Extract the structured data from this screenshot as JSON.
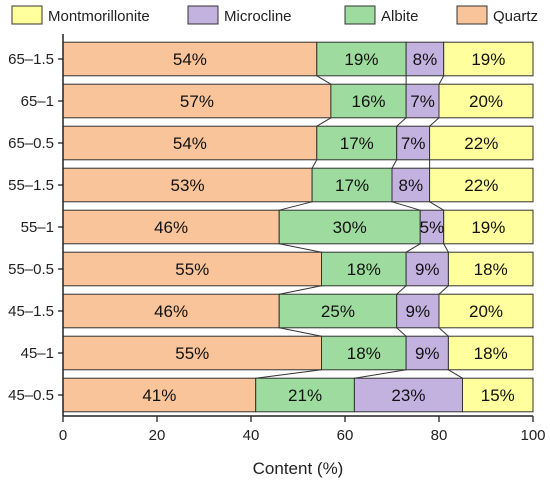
{
  "chart_data": {
    "type": "bar",
    "orientation": "horizontal",
    "stacked": true,
    "categories": [
      "65–1.5",
      "65–1",
      "65–0.5",
      "55–1.5",
      "55–1",
      "55–0.5",
      "45–1.5",
      "45–1",
      "45–0.5"
    ],
    "series": [
      {
        "name": "Quartz",
        "color": "#f9c49a",
        "values": [
          54,
          57,
          54,
          53,
          46,
          55,
          46,
          55,
          41
        ]
      },
      {
        "name": "Albite",
        "color": "#9edb9e",
        "values": [
          19,
          16,
          17,
          17,
          30,
          18,
          25,
          18,
          21
        ]
      },
      {
        "name": "Microcline",
        "color": "#c3b2e0",
        "values": [
          8,
          7,
          7,
          8,
          5,
          9,
          9,
          9,
          23
        ]
      },
      {
        "name": "Montmorillonite",
        "color": "#ffff9e",
        "values": [
          19,
          20,
          22,
          22,
          19,
          18,
          20,
          18,
          15
        ]
      }
    ],
    "legend_order": [
      "Montmorillonite",
      "Microcline",
      "Albite",
      "Quartz"
    ],
    "legend_position": "top",
    "xlabel": "Content (%)",
    "ylabel": "",
    "title": "",
    "xlim": [
      0,
      100
    ],
    "xticks": [
      0,
      20,
      40,
      60,
      80,
      100
    ],
    "label_suffix": "%",
    "connector_lines": true,
    "grid": false
  }
}
